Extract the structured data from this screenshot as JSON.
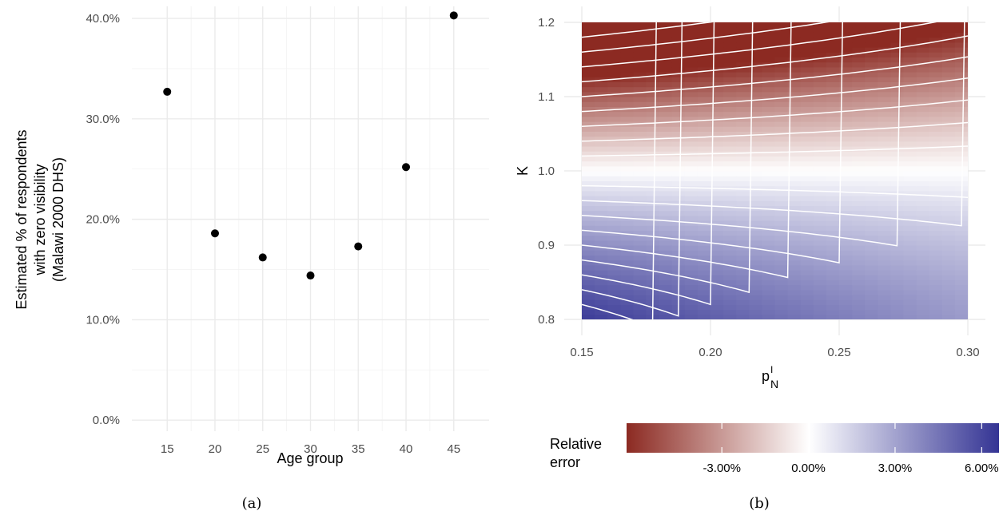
{
  "panels": {
    "a": {
      "caption": "(a)",
      "chart_data": {
        "type": "scatter",
        "x": [
          15,
          20,
          25,
          30,
          35,
          40,
          45
        ],
        "y": [
          0.327,
          0.186,
          0.162,
          0.144,
          0.173,
          0.252,
          0.403
        ],
        "xlabel": "Age group",
        "ylabel": [
          "Estimated % of respondents",
          "with zero visibility",
          "(Malawi 2000 DHS)"
        ],
        "xlim": [
          11.3,
          48.7
        ],
        "ylim": [
          -0.011,
          0.412
        ],
        "x_ticks": [
          15,
          20,
          25,
          30,
          35,
          40,
          45
        ],
        "x_tick_labels": [
          "15",
          "20",
          "25",
          "30",
          "35",
          "40",
          "45"
        ],
        "y_ticks": [
          0,
          0.1,
          0.2,
          0.3,
          0.4
        ],
        "y_tick_labels": [
          "0.0%",
          "10.0%",
          "20.0%",
          "30.0%",
          "40.0%"
        ],
        "point_color": "#000000",
        "grid": true
      }
    },
    "b": {
      "caption": "(b)",
      "chart_data": {
        "type": "heatmap",
        "xlabel": "p",
        "xlabel_sup": "I",
        "xlabel_sub": "N",
        "ylabel": "K",
        "xlim": [
          0.15,
          0.3
        ],
        "ylim": [
          0.8,
          1.2
        ],
        "x_ticks": [
          0.15,
          0.2,
          0.25,
          0.3
        ],
        "x_tick_labels": [
          "0.15",
          "0.20",
          "0.25",
          "0.30"
        ],
        "y_ticks": [
          0.8,
          0.9,
          1.0,
          1.1,
          1.2
        ],
        "y_tick_labels": [
          "0.8",
          "0.9",
          "1.0",
          "1.1",
          "1.2"
        ],
        "value_range": [
          -0.063,
          0.066
        ],
        "colors": {
          "low": "#8c2a22",
          "mid": "#ffffff",
          "high": "#343494",
          "contour": "#ffffff"
        },
        "contour_values_K": [
          0.82,
          0.84,
          0.86,
          0.88,
          0.9,
          0.92,
          0.94,
          0.96,
          0.98,
          1.02,
          1.04,
          1.06,
          1.08,
          1.1,
          1.12,
          1.14,
          1.16,
          1.18
        ],
        "legend": {
          "title": [
            "Relative",
            "error"
          ],
          "breaks": [
            -0.03,
            0.0,
            0.03,
            0.06
          ],
          "labels": [
            "-3.00%",
            "0.00%",
            "3.00%",
            "6.00%"
          ]
        }
      }
    }
  }
}
